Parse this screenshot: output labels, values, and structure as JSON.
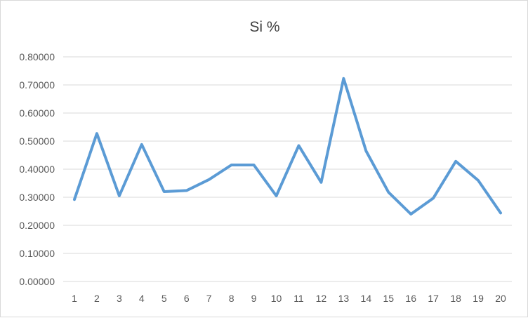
{
  "chart_data": {
    "type": "line",
    "title": "Si %",
    "xlabel": "",
    "ylabel": "",
    "categories": [
      "1",
      "2",
      "3",
      "4",
      "5",
      "6",
      "7",
      "8",
      "9",
      "10",
      "11",
      "12",
      "13",
      "14",
      "15",
      "16",
      "17",
      "18",
      "19",
      "20"
    ],
    "series": [
      {
        "values": [
          0.292,
          0.527,
          0.305,
          0.488,
          0.32,
          0.324,
          0.363,
          0.415,
          0.415,
          0.305,
          0.484,
          0.353,
          0.723,
          0.465,
          0.318,
          0.24,
          0.297,
          0.428,
          0.36,
          0.244
        ],
        "color": "#5b9bd5"
      }
    ],
    "ylim": [
      0,
      0.8
    ],
    "yticks": [
      "0.00000",
      "0.10000",
      "0.20000",
      "0.30000",
      "0.40000",
      "0.50000",
      "0.60000",
      "0.70000",
      "0.80000"
    ],
    "grid": true,
    "legend": "none"
  }
}
